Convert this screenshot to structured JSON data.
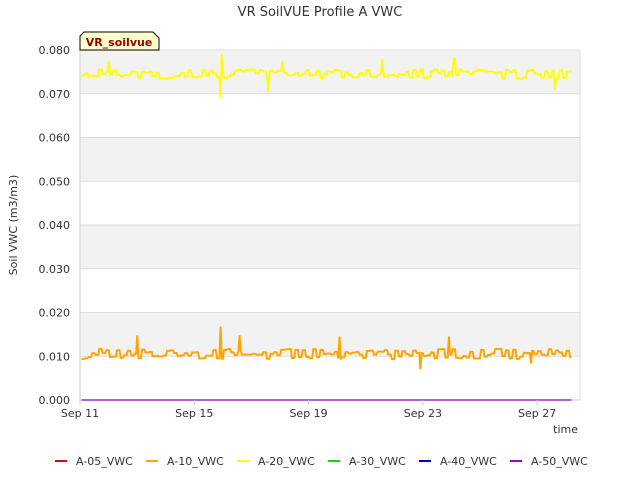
{
  "chart_data": {
    "type": "line",
    "title": "VR SoilVUE Profile A VWC",
    "xlabel": "time",
    "ylabel": "Soil VWC (m3/m3)",
    "tag": "VR_soilvue",
    "ylim": [
      0,
      0.08
    ],
    "yticks": [
      "0.000",
      "0.010",
      "0.020",
      "0.030",
      "0.040",
      "0.050",
      "0.060",
      "0.070",
      "0.080"
    ],
    "xlim_days": [
      0,
      17.5
    ],
    "xticks": [
      {
        "label": "Sep 11",
        "day": 0
      },
      {
        "label": "Sep 15",
        "day": 4
      },
      {
        "label": "Sep 19",
        "day": 8
      },
      {
        "label": "Sep 23",
        "day": 12
      },
      {
        "label": "Sep 27",
        "day": 16
      }
    ],
    "x_range_days": [
      0.05,
      17.2
    ],
    "series": [
      {
        "name": "A-05_VWC",
        "color": "#dd0000",
        "mean": 0.0,
        "noise": 0.0,
        "visible_line": false
      },
      {
        "name": "A-10_VWC",
        "color": "#ffa500",
        "mean": 0.0105,
        "noise": 0.0012,
        "visible_line": true,
        "spikes": [
          [
            2.0,
            0.0148
          ],
          [
            4.9,
            0.0168
          ],
          [
            5.6,
            0.0148
          ],
          [
            9.1,
            0.0145
          ],
          [
            11.9,
            0.007
          ],
          [
            12.9,
            0.0145
          ],
          [
            15.8,
            0.0083
          ]
        ]
      },
      {
        "name": "A-20_VWC",
        "color": "#ffff00",
        "mean": 0.0745,
        "noise": 0.0011,
        "visible_line": true,
        "spikes": [
          [
            1.0,
            0.0775
          ],
          [
            4.9,
            0.069
          ],
          [
            4.95,
            0.079
          ],
          [
            6.6,
            0.0705
          ],
          [
            7.1,
            0.0775
          ],
          [
            10.6,
            0.078
          ],
          [
            13.1,
            0.078
          ],
          [
            16.6,
            0.071
          ]
        ]
      },
      {
        "name": "A-30_VWC",
        "color": "#00dd00",
        "mean": 0.0,
        "noise": 0.0,
        "visible_line": false
      },
      {
        "name": "A-40_VWC",
        "color": "#0000cc",
        "mean": 0.0,
        "noise": 0.0,
        "visible_line": false
      },
      {
        "name": "A-50_VWC",
        "color": "#9900cc",
        "mean": 0.0,
        "noise": 0.0,
        "visible_line": true
      }
    ]
  }
}
